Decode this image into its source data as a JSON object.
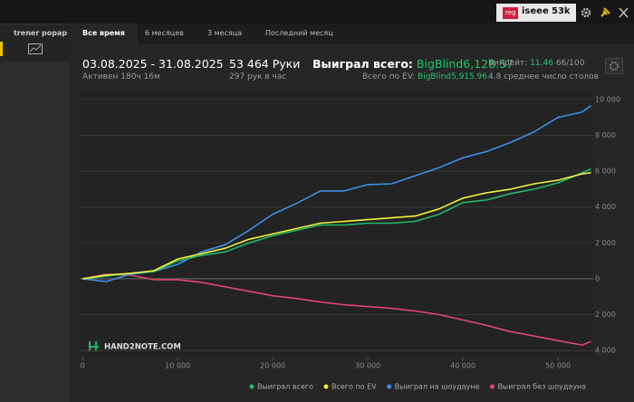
{
  "topbar": {
    "badge": "reg",
    "user": "iseee",
    "count": "53k"
  },
  "sidebar": {
    "title": "trener popap"
  },
  "tabs": [
    "Все время",
    "6 месяцев",
    "3 месяца",
    "Последний месяц"
  ],
  "stats": {
    "period": "03.08.2025 - 31.08.2025",
    "active": "Активен 180ч 16м",
    "hands": "53 464 Руки",
    "per_hour": "297 рук в час",
    "won_label": "Выиграл всего:",
    "won_value": "BigBlind6,128.57",
    "ev_label": "Всего по EV:",
    "ev_value": "BigBlind5,915.96",
    "winrate_label": "Винрейт:",
    "winrate_value": "11.46",
    "winrate_unit": "66/100",
    "tables": "4.8 среднее число столов"
  },
  "watermark": "HAND2NOTE.COM",
  "chart_data": {
    "type": "line",
    "x": [
      0,
      2500,
      5000,
      7500,
      10000,
      12500,
      15000,
      17500,
      20000,
      22500,
      25000,
      27500,
      30000,
      32500,
      35000,
      37500,
      40000,
      42500,
      45000,
      47500,
      50000,
      52500,
      53464
    ],
    "xlim": [
      -300,
      53700
    ],
    "xticks": [
      0,
      {
        "value": 10000,
        "label": "10 000"
      },
      {
        "value": 20000,
        "label": "20 000"
      },
      {
        "value": 30000,
        "label": "30 000"
      },
      {
        "value": 40000,
        "label": "40 000"
      },
      {
        "value": 50000,
        "label": "50 000"
      }
    ],
    "ylim": [
      -4400,
      10500
    ],
    "yticks": [
      {
        "value": -4000,
        "label": "4 000"
      },
      {
        "value": -2000,
        "label": "2 000"
      },
      0,
      {
        "value": 2000,
        "label": "2 000"
      },
      {
        "value": 4000,
        "label": "4 000"
      },
      {
        "value": 6000,
        "label": "6 000"
      },
      {
        "value": 8000,
        "label": "8 000"
      },
      {
        "value": 10000,
        "label": "10 000"
      }
    ],
    "grid": true,
    "series": [
      {
        "name": "Выиграл всего",
        "color": "#22b86a",
        "values": [
          0,
          150,
          300,
          400,
          1000,
          1300,
          1500,
          2000,
          2400,
          2700,
          3000,
          3000,
          3100,
          3100,
          3200,
          3600,
          4250,
          4400,
          4750,
          5000,
          5350,
          5900,
          6128.57
        ]
      },
      {
        "name": "Всего по EV",
        "color": "#f2f23a",
        "values": [
          0,
          200,
          300,
          450,
          1100,
          1400,
          1700,
          2200,
          2500,
          2800,
          3100,
          3200,
          3300,
          3400,
          3500,
          3900,
          4500,
          4800,
          5000,
          5300,
          5500,
          5850,
          5915.96
        ]
      },
      {
        "name": "Выиграл на шоудауне",
        "color": "#3c8fe6",
        "values": [
          0,
          -150,
          250,
          400,
          800,
          1500,
          1900,
          2700,
          3600,
          4200,
          4900,
          4900,
          5250,
          5300,
          5750,
          6200,
          6750,
          7100,
          7600,
          8200,
          9000,
          9300,
          9650
        ]
      },
      {
        "name": "Выиграл без шоудауна",
        "color": "#e0456f",
        "values": [
          0,
          250,
          200,
          -50,
          -50,
          -200,
          -450,
          -700,
          -950,
          -1100,
          -1300,
          -1450,
          -1550,
          -1650,
          -1800,
          -2000,
          -2300,
          -2600,
          -2950,
          -3200,
          -3450,
          -3700,
          -3500
        ]
      }
    ]
  }
}
